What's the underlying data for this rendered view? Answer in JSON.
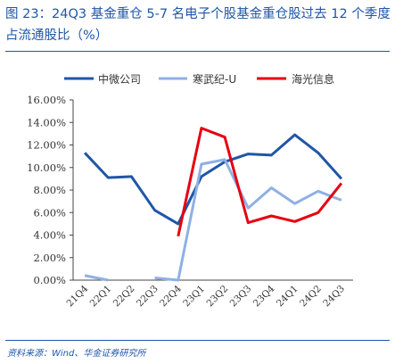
{
  "title": "图 23：24Q3 基金重仓 5-7 名电子个股基金重仓股过去 12 个季度占流通股比（%）",
  "source": "资料来源：Wind、华金证券研究所",
  "chart_data": {
    "type": "line",
    "categories": [
      "21Q4",
      "22Q1",
      "22Q2",
      "22Q3",
      "22Q4",
      "23Q1",
      "23Q2",
      "23Q3",
      "23Q4",
      "24Q1",
      "24Q2",
      "24Q3"
    ],
    "yticks": [
      "0.00%",
      "2.00%",
      "4.00%",
      "6.00%",
      "8.00%",
      "10.00%",
      "12.00%",
      "14.00%",
      "16.00%"
    ],
    "ylim": [
      0,
      16
    ],
    "grid": false,
    "legend_position": "top",
    "series": [
      {
        "name": "中微公司",
        "color": "#1f56a8",
        "values": [
          11.3,
          9.1,
          9.2,
          6.2,
          5.0,
          9.2,
          10.5,
          11.2,
          11.1,
          12.9,
          11.3,
          9.0
        ]
      },
      {
        "name": "寒武纪-U",
        "color": "#8fb0e4",
        "values": [
          0.4,
          0.0,
          null,
          0.2,
          0.0,
          10.3,
          10.7,
          6.4,
          8.2,
          6.8,
          7.9,
          7.1
        ]
      },
      {
        "name": "海光信息",
        "color": "#e60012",
        "values": [
          null,
          null,
          null,
          null,
          3.9,
          13.5,
          12.7,
          5.1,
          5.7,
          5.2,
          6.0,
          8.6
        ]
      }
    ]
  }
}
